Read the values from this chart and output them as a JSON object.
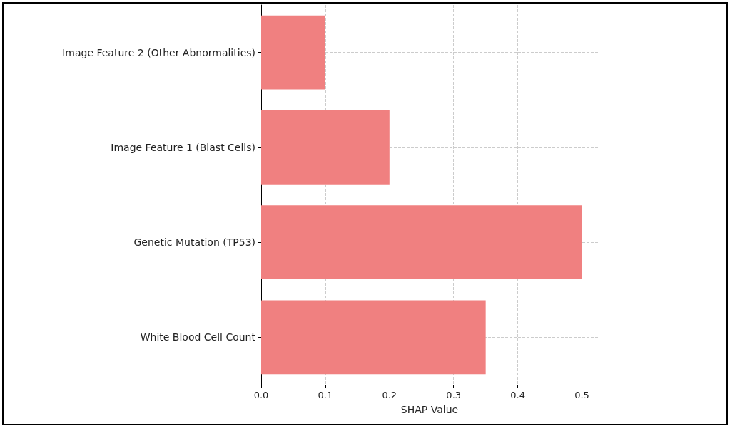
{
  "chart_data": {
    "type": "bar",
    "orientation": "horizontal",
    "xlabel": "SHAP Value",
    "categories": [
      "Image Feature 2 (Other Abnormalities)",
      "Image Feature 1 (Blast Cells)",
      "Genetic Mutation (TP53)",
      "White Blood Cell Count"
    ],
    "values": [
      0.1,
      0.2,
      0.5,
      0.35
    ],
    "color": "#f08080",
    "xlim": [
      0,
      0.525
    ],
    "xticks": [
      {
        "value": 0,
        "label": "0.0"
      },
      0.1,
      0.2,
      0.3,
      0.4,
      0.5
    ],
    "grid": true
  }
}
